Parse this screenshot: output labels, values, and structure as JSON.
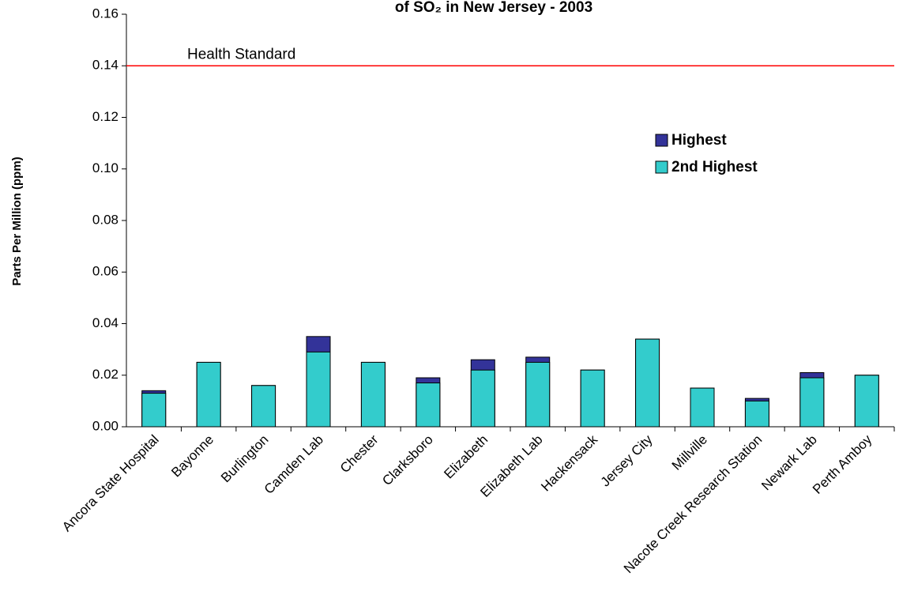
{
  "chart_data": {
    "type": "overlap-bar",
    "title": "of SO₂ in New Jersey - 2003",
    "y_label": "Parts Per Million (ppm)",
    "categories": [
      "Ancora State Hospital",
      "Bayonne",
      "Burlington",
      "Camden Lab",
      "Chester",
      "Clarksboro",
      "Elizabeth",
      "Elizabeth Lab",
      "Hackensack",
      "Jersey City",
      "Millville",
      "Nacote Creek Research Station",
      "Newark Lab",
      "Perth Amboy"
    ],
    "series": [
      {
        "name": "Highest",
        "color": "#333399",
        "values": [
          0.014,
          0.025,
          0.016,
          0.035,
          0.025,
          0.019,
          0.026,
          0.027,
          0.022,
          0.034,
          0.015,
          0.011,
          0.021,
          0.02
        ]
      },
      {
        "name": "2nd Highest",
        "color": "#33cccc",
        "values": [
          0.013,
          0.025,
          0.016,
          0.029,
          0.025,
          0.017,
          0.022,
          0.025,
          0.022,
          0.034,
          0.015,
          0.01,
          0.019,
          0.02
        ]
      }
    ],
    "reference_lines": [
      {
        "label": "Health Standard",
        "value": 0.14,
        "color": "#ff0000"
      }
    ],
    "ylim": [
      0,
      0.16
    ],
    "yticks": [
      {
        "value": 0,
        "label": "0.00"
      },
      {
        "value": 0.02,
        "label": "0.02"
      },
      {
        "value": 0.04,
        "label": "0.04"
      },
      {
        "value": 0.06,
        "label": "0.06"
      },
      {
        "value": 0.08,
        "label": "0.08"
      },
      {
        "value": 0.1,
        "label": "0.10"
      },
      {
        "value": 0.12,
        "label": "0.12"
      },
      {
        "value": 0.14,
        "label": "0.14"
      },
      {
        "value": 0.16,
        "label": "0.16"
      }
    ],
    "legend": "upper-right"
  }
}
